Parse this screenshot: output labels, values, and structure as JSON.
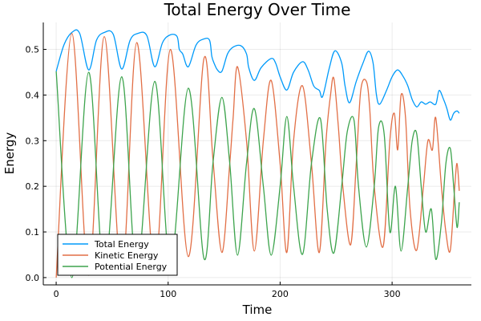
{
  "chart_data": {
    "type": "line",
    "title": "Total Energy Over Time",
    "xlabel": "Time",
    "ylabel": "Energy",
    "xlim": [
      -11.5,
      370.8
    ],
    "ylim": [
      -0.016,
      0.559
    ],
    "xticks": [
      0,
      100,
      200,
      300
    ],
    "xtick_labels": [
      "0",
      "100",
      "200",
      "300"
    ],
    "yticks": [
      0,
      0.1,
      0.2,
      0.3,
      0.4,
      0.5
    ],
    "ytick_labels": [
      "0.0",
      "0.1",
      "0.2",
      "0.3",
      "0.4",
      "0.5"
    ],
    "grid": true,
    "legend_position": "bottom-left",
    "series": [
      {
        "name": "Total Energy",
        "color": "#009AFA",
        "points": [
          [
            0,
            0.452
          ],
          [
            7,
            0.51
          ],
          [
            14,
            0.537
          ],
          [
            21,
            0.535
          ],
          [
            29,
            0.455
          ],
          [
            36,
            0.52
          ],
          [
            43,
            0.537
          ],
          [
            51,
            0.533
          ],
          [
            58.5,
            0.457
          ],
          [
            66,
            0.52
          ],
          [
            73,
            0.535
          ],
          [
            81,
            0.53
          ],
          [
            88,
            0.462
          ],
          [
            95,
            0.515
          ],
          [
            102,
            0.532
          ],
          [
            108,
            0.528
          ],
          [
            110,
            0.5
          ],
          [
            113,
            0.49
          ],
          [
            118,
            0.462
          ],
          [
            125,
            0.51
          ],
          [
            132,
            0.523
          ],
          [
            137,
            0.52
          ],
          [
            139,
            0.485
          ],
          [
            141,
            0.47
          ],
          [
            144,
            0.455
          ],
          [
            148,
            0.452
          ],
          [
            153,
            0.49
          ],
          [
            158,
            0.505
          ],
          [
            165,
            0.508
          ],
          [
            170,
            0.49
          ],
          [
            172,
            0.46
          ],
          [
            177,
            0.432
          ],
          [
            183,
            0.46
          ],
          [
            192,
            0.48
          ],
          [
            196,
            0.47
          ],
          [
            200,
            0.44
          ],
          [
            206,
            0.411
          ],
          [
            212,
            0.45
          ],
          [
            220,
            0.473
          ],
          [
            225,
            0.455
          ],
          [
            230,
            0.42
          ],
          [
            235,
            0.41
          ],
          [
            238,
            0.397
          ],
          [
            244,
            0.46
          ],
          [
            249,
            0.497
          ],
          [
            255,
            0.47
          ],
          [
            258,
            0.42
          ],
          [
            262,
            0.383
          ],
          [
            268,
            0.43
          ],
          [
            274,
            0.47
          ],
          [
            279,
            0.496
          ],
          [
            283,
            0.47
          ],
          [
            286,
            0.4
          ],
          [
            289,
            0.38
          ],
          [
            295,
            0.41
          ],
          [
            300,
            0.44
          ],
          [
            305,
            0.455
          ],
          [
            310,
            0.44
          ],
          [
            314,
            0.42
          ],
          [
            318,
            0.39
          ],
          [
            322,
            0.374
          ],
          [
            326,
            0.385
          ],
          [
            330,
            0.38
          ],
          [
            334,
            0.385
          ],
          [
            339,
            0.38
          ],
          [
            342,
            0.41
          ],
          [
            346,
            0.39
          ],
          [
            349,
            0.37
          ],
          [
            352,
            0.345
          ],
          [
            355,
            0.36
          ],
          [
            358,
            0.365
          ],
          [
            360,
            0.36
          ]
        ]
      },
      {
        "name": "Kinetic Energy",
        "color": "#E26F46",
        "points": [
          [
            0,
            0
          ],
          [
            14,
            0.535
          ],
          [
            29,
            0.005
          ],
          [
            43,
            0.528
          ],
          [
            58.5,
            0.008
          ],
          [
            72,
            0.515
          ],
          [
            88,
            0.02
          ],
          [
            102,
            0.5
          ],
          [
            118,
            0.046
          ],
          [
            132,
            0.48
          ],
          [
            140,
            0.26
          ],
          [
            148,
            0.055
          ],
          [
            155,
            0.25
          ],
          [
            158,
            0.35
          ],
          [
            162,
            0.462
          ],
          [
            170,
            0.3
          ],
          [
            177,
            0.058
          ],
          [
            185,
            0.3
          ],
          [
            192,
            0.432
          ],
          [
            200,
            0.25
          ],
          [
            206,
            0.055
          ],
          [
            212,
            0.3
          ],
          [
            220,
            0.42
          ],
          [
            228,
            0.25
          ],
          [
            235,
            0.055
          ],
          [
            241,
            0.3
          ],
          [
            245,
            0.4
          ],
          [
            248,
            0.436
          ],
          [
            252,
            0.33
          ],
          [
            256,
            0.2
          ],
          [
            263,
            0.072
          ],
          [
            268,
            0.25
          ],
          [
            272,
            0.41
          ],
          [
            277,
            0.43
          ],
          [
            280,
            0.37
          ],
          [
            284,
            0.2
          ],
          [
            292,
            0.068
          ],
          [
            298,
            0.3
          ],
          [
            302,
            0.36
          ],
          [
            305,
            0.28
          ],
          [
            308,
            0.4
          ],
          [
            312,
            0.35
          ],
          [
            316,
            0.15
          ],
          [
            322,
            0.06
          ],
          [
            328,
            0.2
          ],
          [
            332,
            0.3
          ],
          [
            336,
            0.28
          ],
          [
            339,
            0.35
          ],
          [
            344,
            0.2
          ],
          [
            348,
            0.1
          ],
          [
            352,
            0.06
          ],
          [
            356,
            0.2
          ],
          [
            358,
            0.25
          ],
          [
            360,
            0.19
          ]
        ]
      },
      {
        "name": "Potential Energy",
        "color": "#3DA44D",
        "points": [
          [
            0,
            0.452
          ],
          [
            14,
            0.0
          ],
          [
            29,
            0.45
          ],
          [
            43,
            0.01
          ],
          [
            58.5,
            0.44
          ],
          [
            72,
            0.015
          ],
          [
            88,
            0.43
          ],
          [
            102,
            0.03
          ],
          [
            118,
            0.415
          ],
          [
            132,
            0.042
          ],
          [
            140,
            0.25
          ],
          [
            148,
            0.395
          ],
          [
            155,
            0.25
          ],
          [
            162,
            0.049
          ],
          [
            170,
            0.25
          ],
          [
            177,
            0.37
          ],
          [
            185,
            0.2
          ],
          [
            192,
            0.049
          ],
          [
            200,
            0.2
          ],
          [
            206,
            0.353
          ],
          [
            212,
            0.2
          ],
          [
            220,
            0.051
          ],
          [
            228,
            0.25
          ],
          [
            236,
            0.348
          ],
          [
            242,
            0.15
          ],
          [
            248,
            0.054
          ],
          [
            255,
            0.2
          ],
          [
            260,
            0.32
          ],
          [
            266,
            0.345
          ],
          [
            270,
            0.2
          ],
          [
            277,
            0.067
          ],
          [
            284,
            0.2
          ],
          [
            288,
            0.33
          ],
          [
            293,
            0.313
          ],
          [
            298,
            0.1
          ],
          [
            303,
            0.2
          ],
          [
            308,
            0.058
          ],
          [
            314,
            0.2
          ],
          [
            318,
            0.3
          ],
          [
            322,
            0.315
          ],
          [
            326,
            0.2
          ],
          [
            330,
            0.1
          ],
          [
            335,
            0.15
          ],
          [
            339,
            0.04
          ],
          [
            344,
            0.12
          ],
          [
            348,
            0.25
          ],
          [
            352,
            0.283
          ],
          [
            355,
            0.2
          ],
          [
            358,
            0.11
          ],
          [
            360,
            0.165
          ]
        ]
      }
    ]
  }
}
